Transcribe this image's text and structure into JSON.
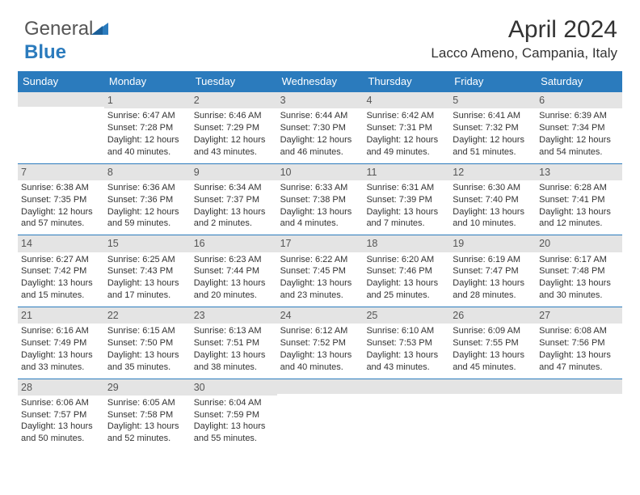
{
  "logo": {
    "part1": "General",
    "part2": "Blue"
  },
  "header": {
    "title": "April 2024",
    "location": "Lacco Ameno, Campania, Italy"
  },
  "colors": {
    "accent": "#2b7bbd",
    "header_bg": "#2b7bbd",
    "header_fg": "#ffffff",
    "daynum_bg": "#e4e4e4",
    "divider": "#2b7bbd",
    "text": "#333333"
  },
  "typography": {
    "title_fontsize": 30,
    "location_fontsize": 17,
    "dayhead_fontsize": 13,
    "daynum_fontsize": 12.5,
    "body_fontsize": 11
  },
  "day_names": [
    "Sunday",
    "Monday",
    "Tuesday",
    "Wednesday",
    "Thursday",
    "Friday",
    "Saturday"
  ],
  "weeks": [
    [
      {
        "n": "",
        "lines": []
      },
      {
        "n": "1",
        "lines": [
          "Sunrise: 6:47 AM",
          "Sunset: 7:28 PM",
          "Daylight: 12 hours",
          "and 40 minutes."
        ]
      },
      {
        "n": "2",
        "lines": [
          "Sunrise: 6:46 AM",
          "Sunset: 7:29 PM",
          "Daylight: 12 hours",
          "and 43 minutes."
        ]
      },
      {
        "n": "3",
        "lines": [
          "Sunrise: 6:44 AM",
          "Sunset: 7:30 PM",
          "Daylight: 12 hours",
          "and 46 minutes."
        ]
      },
      {
        "n": "4",
        "lines": [
          "Sunrise: 6:42 AM",
          "Sunset: 7:31 PM",
          "Daylight: 12 hours",
          "and 49 minutes."
        ]
      },
      {
        "n": "5",
        "lines": [
          "Sunrise: 6:41 AM",
          "Sunset: 7:32 PM",
          "Daylight: 12 hours",
          "and 51 minutes."
        ]
      },
      {
        "n": "6",
        "lines": [
          "Sunrise: 6:39 AM",
          "Sunset: 7:34 PM",
          "Daylight: 12 hours",
          "and 54 minutes."
        ]
      }
    ],
    [
      {
        "n": "7",
        "lines": [
          "Sunrise: 6:38 AM",
          "Sunset: 7:35 PM",
          "Daylight: 12 hours",
          "and 57 minutes."
        ]
      },
      {
        "n": "8",
        "lines": [
          "Sunrise: 6:36 AM",
          "Sunset: 7:36 PM",
          "Daylight: 12 hours",
          "and 59 minutes."
        ]
      },
      {
        "n": "9",
        "lines": [
          "Sunrise: 6:34 AM",
          "Sunset: 7:37 PM",
          "Daylight: 13 hours",
          "and 2 minutes."
        ]
      },
      {
        "n": "10",
        "lines": [
          "Sunrise: 6:33 AM",
          "Sunset: 7:38 PM",
          "Daylight: 13 hours",
          "and 4 minutes."
        ]
      },
      {
        "n": "11",
        "lines": [
          "Sunrise: 6:31 AM",
          "Sunset: 7:39 PM",
          "Daylight: 13 hours",
          "and 7 minutes."
        ]
      },
      {
        "n": "12",
        "lines": [
          "Sunrise: 6:30 AM",
          "Sunset: 7:40 PM",
          "Daylight: 13 hours",
          "and 10 minutes."
        ]
      },
      {
        "n": "13",
        "lines": [
          "Sunrise: 6:28 AM",
          "Sunset: 7:41 PM",
          "Daylight: 13 hours",
          "and 12 minutes."
        ]
      }
    ],
    [
      {
        "n": "14",
        "lines": [
          "Sunrise: 6:27 AM",
          "Sunset: 7:42 PM",
          "Daylight: 13 hours",
          "and 15 minutes."
        ]
      },
      {
        "n": "15",
        "lines": [
          "Sunrise: 6:25 AM",
          "Sunset: 7:43 PM",
          "Daylight: 13 hours",
          "and 17 minutes."
        ]
      },
      {
        "n": "16",
        "lines": [
          "Sunrise: 6:23 AM",
          "Sunset: 7:44 PM",
          "Daylight: 13 hours",
          "and 20 minutes."
        ]
      },
      {
        "n": "17",
        "lines": [
          "Sunrise: 6:22 AM",
          "Sunset: 7:45 PM",
          "Daylight: 13 hours",
          "and 23 minutes."
        ]
      },
      {
        "n": "18",
        "lines": [
          "Sunrise: 6:20 AM",
          "Sunset: 7:46 PM",
          "Daylight: 13 hours",
          "and 25 minutes."
        ]
      },
      {
        "n": "19",
        "lines": [
          "Sunrise: 6:19 AM",
          "Sunset: 7:47 PM",
          "Daylight: 13 hours",
          "and 28 minutes."
        ]
      },
      {
        "n": "20",
        "lines": [
          "Sunrise: 6:17 AM",
          "Sunset: 7:48 PM",
          "Daylight: 13 hours",
          "and 30 minutes."
        ]
      }
    ],
    [
      {
        "n": "21",
        "lines": [
          "Sunrise: 6:16 AM",
          "Sunset: 7:49 PM",
          "Daylight: 13 hours",
          "and 33 minutes."
        ]
      },
      {
        "n": "22",
        "lines": [
          "Sunrise: 6:15 AM",
          "Sunset: 7:50 PM",
          "Daylight: 13 hours",
          "and 35 minutes."
        ]
      },
      {
        "n": "23",
        "lines": [
          "Sunrise: 6:13 AM",
          "Sunset: 7:51 PM",
          "Daylight: 13 hours",
          "and 38 minutes."
        ]
      },
      {
        "n": "24",
        "lines": [
          "Sunrise: 6:12 AM",
          "Sunset: 7:52 PM",
          "Daylight: 13 hours",
          "and 40 minutes."
        ]
      },
      {
        "n": "25",
        "lines": [
          "Sunrise: 6:10 AM",
          "Sunset: 7:53 PM",
          "Daylight: 13 hours",
          "and 43 minutes."
        ]
      },
      {
        "n": "26",
        "lines": [
          "Sunrise: 6:09 AM",
          "Sunset: 7:55 PM",
          "Daylight: 13 hours",
          "and 45 minutes."
        ]
      },
      {
        "n": "27",
        "lines": [
          "Sunrise: 6:08 AM",
          "Sunset: 7:56 PM",
          "Daylight: 13 hours",
          "and 47 minutes."
        ]
      }
    ],
    [
      {
        "n": "28",
        "lines": [
          "Sunrise: 6:06 AM",
          "Sunset: 7:57 PM",
          "Daylight: 13 hours",
          "and 50 minutes."
        ]
      },
      {
        "n": "29",
        "lines": [
          "Sunrise: 6:05 AM",
          "Sunset: 7:58 PM",
          "Daylight: 13 hours",
          "and 52 minutes."
        ]
      },
      {
        "n": "30",
        "lines": [
          "Sunrise: 6:04 AM",
          "Sunset: 7:59 PM",
          "Daylight: 13 hours",
          "and 55 minutes."
        ]
      },
      {
        "n": "",
        "lines": []
      },
      {
        "n": "",
        "lines": []
      },
      {
        "n": "",
        "lines": []
      },
      {
        "n": "",
        "lines": []
      }
    ]
  ]
}
